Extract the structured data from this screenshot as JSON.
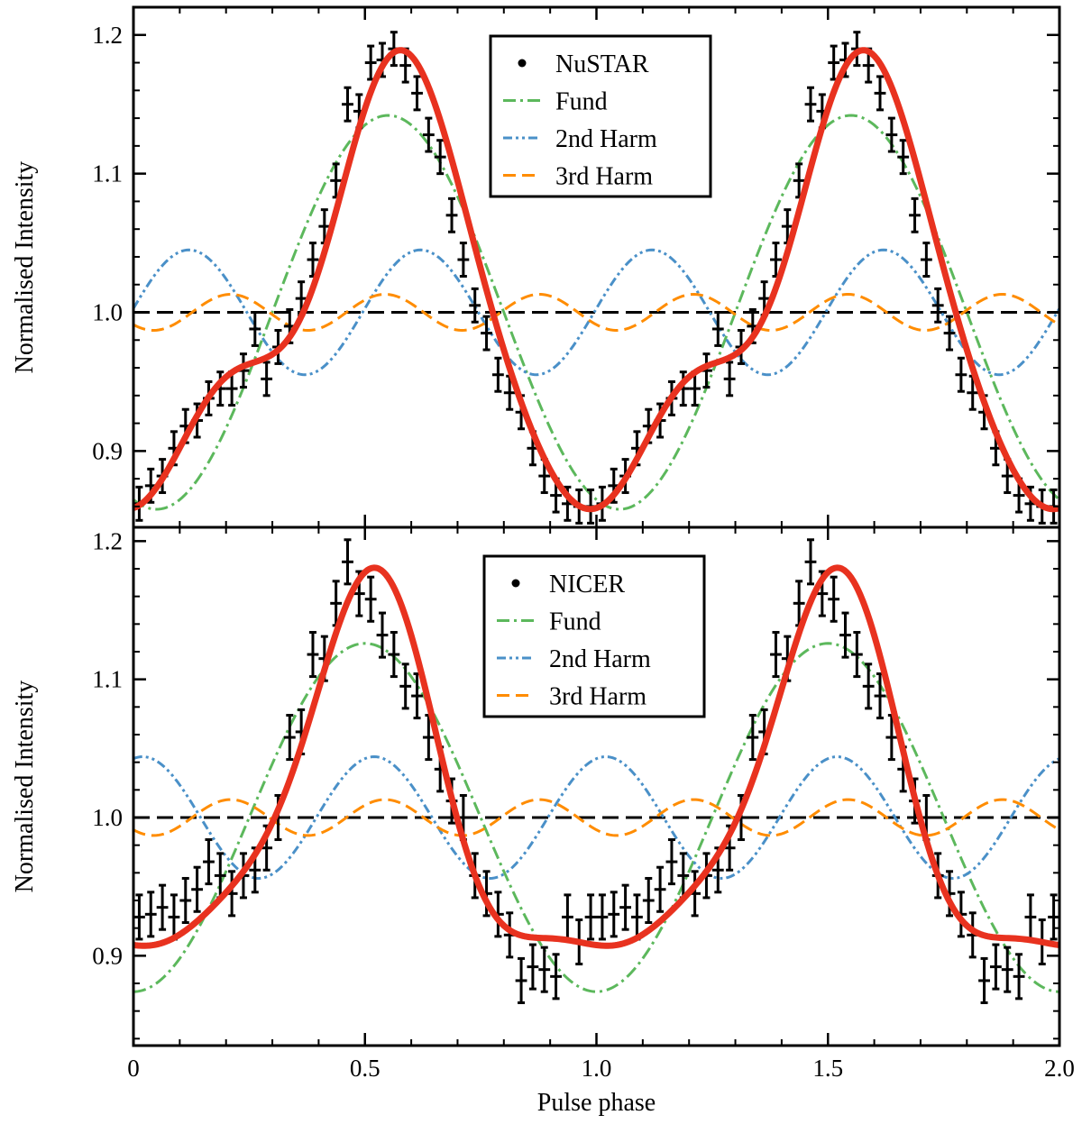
{
  "chart_data": [
    {
      "type": "line",
      "panel": "top",
      "xlabel": "",
      "ylabel": "Normalised Intensity",
      "xlim": [
        0,
        2
      ],
      "ylim": [
        0.845,
        1.22
      ],
      "xticks": [],
      "yticks": [
        {
          "value": 0.9,
          "label": "0.9"
        },
        {
          "value": 1.0,
          "label": "1.0"
        },
        {
          "value": 1.1,
          "label": "1.1"
        },
        {
          "value": 1.2,
          "label": "1.2"
        }
      ],
      "legend": {
        "placement": "top-center",
        "entries": [
          "NuSTAR",
          "Fund",
          "2nd Harm",
          "3rd Harm"
        ]
      },
      "reference_line": 1.0,
      "model": {
        "mean": 1.0,
        "fundamental": {
          "amplitude": 0.142,
          "peak_phase": 0.55
        },
        "second_harmonic": {
          "amplitude": 0.045,
          "peak_phase": 0.12
        },
        "third_harmonic": {
          "amplitude": 0.013,
          "peak_phase": 0.21
        }
      },
      "series": [
        {
          "name": "NuSTAR",
          "style": "points-errorbars",
          "color": "#000000",
          "x_halfwidth": 0.0125,
          "y_error": 0.012,
          "x": [
            0.0125,
            0.0375,
            0.0625,
            0.0875,
            0.1125,
            0.1375,
            0.1625,
            0.1875,
            0.2125,
            0.2375,
            0.2625,
            0.2875,
            0.3125,
            0.3375,
            0.3625,
            0.3875,
            0.4125,
            0.4375,
            0.4625,
            0.4875,
            0.5125,
            0.5375,
            0.5625,
            0.5875,
            0.6125,
            0.6375,
            0.6625,
            0.6875,
            0.7125,
            0.7375,
            0.7625,
            0.7875,
            0.8125,
            0.8375,
            0.8625,
            0.8875,
            0.9125,
            0.9375,
            0.9625,
            0.9875
          ],
          "values": [
            0.862,
            0.875,
            0.882,
            0.902,
            0.918,
            0.922,
            0.938,
            0.945,
            0.945,
            0.958,
            0.988,
            0.952,
            0.975,
            0.99,
            1.01,
            1.038,
            1.062,
            1.095,
            1.15,
            1.145,
            1.18,
            1.182,
            1.19,
            1.178,
            1.158,
            1.128,
            1.112,
            1.07,
            1.038,
            1.005,
            0.985,
            0.955,
            0.942,
            0.928,
            0.902,
            0.882,
            0.868,
            0.862,
            0.86,
            0.86
          ]
        },
        {
          "name": "Fund",
          "style": "dash-dot",
          "color": "#5cb85c",
          "component": "fundamental"
        },
        {
          "name": "2nd Harm",
          "style": "dash-dot-dot",
          "color": "#4a90c8",
          "component": "second_harmonic"
        },
        {
          "name": "3rd Harm",
          "style": "dashed",
          "color": "#ff8c00",
          "component": "third_harmonic"
        },
        {
          "name": "",
          "style": "solid-thick",
          "color": "#e8321f",
          "component": "total"
        }
      ]
    },
    {
      "type": "line",
      "panel": "bottom",
      "xlabel": "Pulse phase",
      "ylabel": "Normalised Intensity",
      "xlim": [
        0,
        2
      ],
      "ylim": [
        0.835,
        1.21
      ],
      "xticks": [
        {
          "value": 0,
          "label": "0"
        },
        {
          "value": 0.5,
          "label": "0.5"
        },
        {
          "value": 1.0,
          "label": "1.0"
        },
        {
          "value": 1.5,
          "label": "1.5"
        },
        {
          "value": 2.0,
          "label": "2.0"
        }
      ],
      "yticks": [
        {
          "value": 0.9,
          "label": "0.9"
        },
        {
          "value": 1.0,
          "label": "1.0"
        },
        {
          "value": 1.1,
          "label": "1.1"
        },
        {
          "value": 1.2,
          "label": "1.2"
        }
      ],
      "legend": {
        "placement": "top-center",
        "entries": [
          "NICER",
          "Fund",
          "2nd Harm",
          "3rd Harm"
        ]
      },
      "reference_line": 1.0,
      "model": {
        "mean": 1.0,
        "fundamental": {
          "amplitude": 0.126,
          "peak_phase": 0.5
        },
        "second_harmonic": {
          "amplitude": 0.044,
          "peak_phase": 0.02
        },
        "third_harmonic": {
          "amplitude": 0.013,
          "peak_phase": 0.21
        }
      },
      "series": [
        {
          "name": "NICER",
          "style": "points-errorbars",
          "color": "#000000",
          "x_halfwidth": 0.0125,
          "y_error": 0.016,
          "x": [
            0.0125,
            0.0375,
            0.0625,
            0.0875,
            0.1125,
            0.1375,
            0.1625,
            0.1875,
            0.2125,
            0.2375,
            0.2625,
            0.2875,
            0.3125,
            0.3375,
            0.3625,
            0.3875,
            0.4125,
            0.4375,
            0.4625,
            0.4875,
            0.5125,
            0.5375,
            0.5625,
            0.5875,
            0.6125,
            0.6375,
            0.6625,
            0.6875,
            0.7125,
            0.7375,
            0.7625,
            0.7875,
            0.8125,
            0.8375,
            0.8625,
            0.8875,
            0.9125,
            0.9375,
            0.9625,
            0.9875
          ],
          "values": [
            0.928,
            0.93,
            0.935,
            0.928,
            0.94,
            0.948,
            0.968,
            0.958,
            0.945,
            0.958,
            0.962,
            0.978,
            1.0,
            1.058,
            1.062,
            1.118,
            1.115,
            1.155,
            1.185,
            1.162,
            1.158,
            1.132,
            1.118,
            1.095,
            1.088,
            1.058,
            1.035,
            1.012,
            1.0,
            0.958,
            0.945,
            0.93,
            0.915,
            0.882,
            0.892,
            0.89,
            0.885,
            0.928,
            0.91,
            0.928
          ]
        },
        {
          "name": "Fund",
          "style": "dash-dot",
          "color": "#5cb85c",
          "component": "fundamental"
        },
        {
          "name": "2nd Harm",
          "style": "dash-dot-dot",
          "color": "#4a90c8",
          "component": "second_harmonic"
        },
        {
          "name": "3rd Harm",
          "style": "dashed",
          "color": "#ff8c00",
          "component": "third_harmonic"
        },
        {
          "name": "",
          "style": "solid-thick",
          "color": "#e8321f",
          "component": "total"
        }
      ]
    }
  ]
}
